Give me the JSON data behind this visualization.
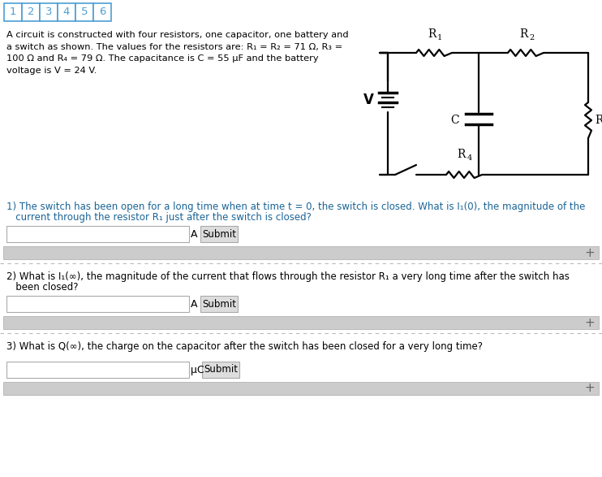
{
  "bg_color": "#ffffff",
  "tab_labels": [
    "1",
    "2",
    "3",
    "4",
    "5",
    "6"
  ],
  "tab_border_color": "#4a9fd4",
  "tab_text_color": "#4a9fd4",
  "problem_line1": "A circuit is constructed with four resistors, one capacitor, one battery and",
  "problem_line2": "a switch as shown. The values for the resistors are: R₁ = R₂ = 71 Ω, R₃ =",
  "problem_line3": "100 Ω and R₄ = 79 Ω. The capacitance is C = 55 μF and the battery",
  "problem_line4": "voltage is V = 24 V.",
  "q1_line1": "1) The switch has been open for a long time when at time t = 0, the switch is closed. What is I₁(0), the magnitude of the",
  "q1_line2": "   current through the resistor R₁ just after the switch is closed?",
  "q1_unit": "A",
  "q2_line1": "2) What is I₁(∞), the magnitude of the current that flows through the resistor R₁ a very long time after the switch has",
  "q2_line2": "   been closed?",
  "q2_unit": "A",
  "q3_line1": "3) What is Q(∞), the charge on the capacitor after the switch has been closed for a very long time?",
  "q3_unit": "μC",
  "text_color": "#000000",
  "blue_color": "#1a6496",
  "gray_bar": "#cccccc",
  "input_border": "#aaaaaa",
  "button_bg": "#dddddd",
  "dotted_color": "#bbbbbb",
  "circuit_color": "#000000"
}
